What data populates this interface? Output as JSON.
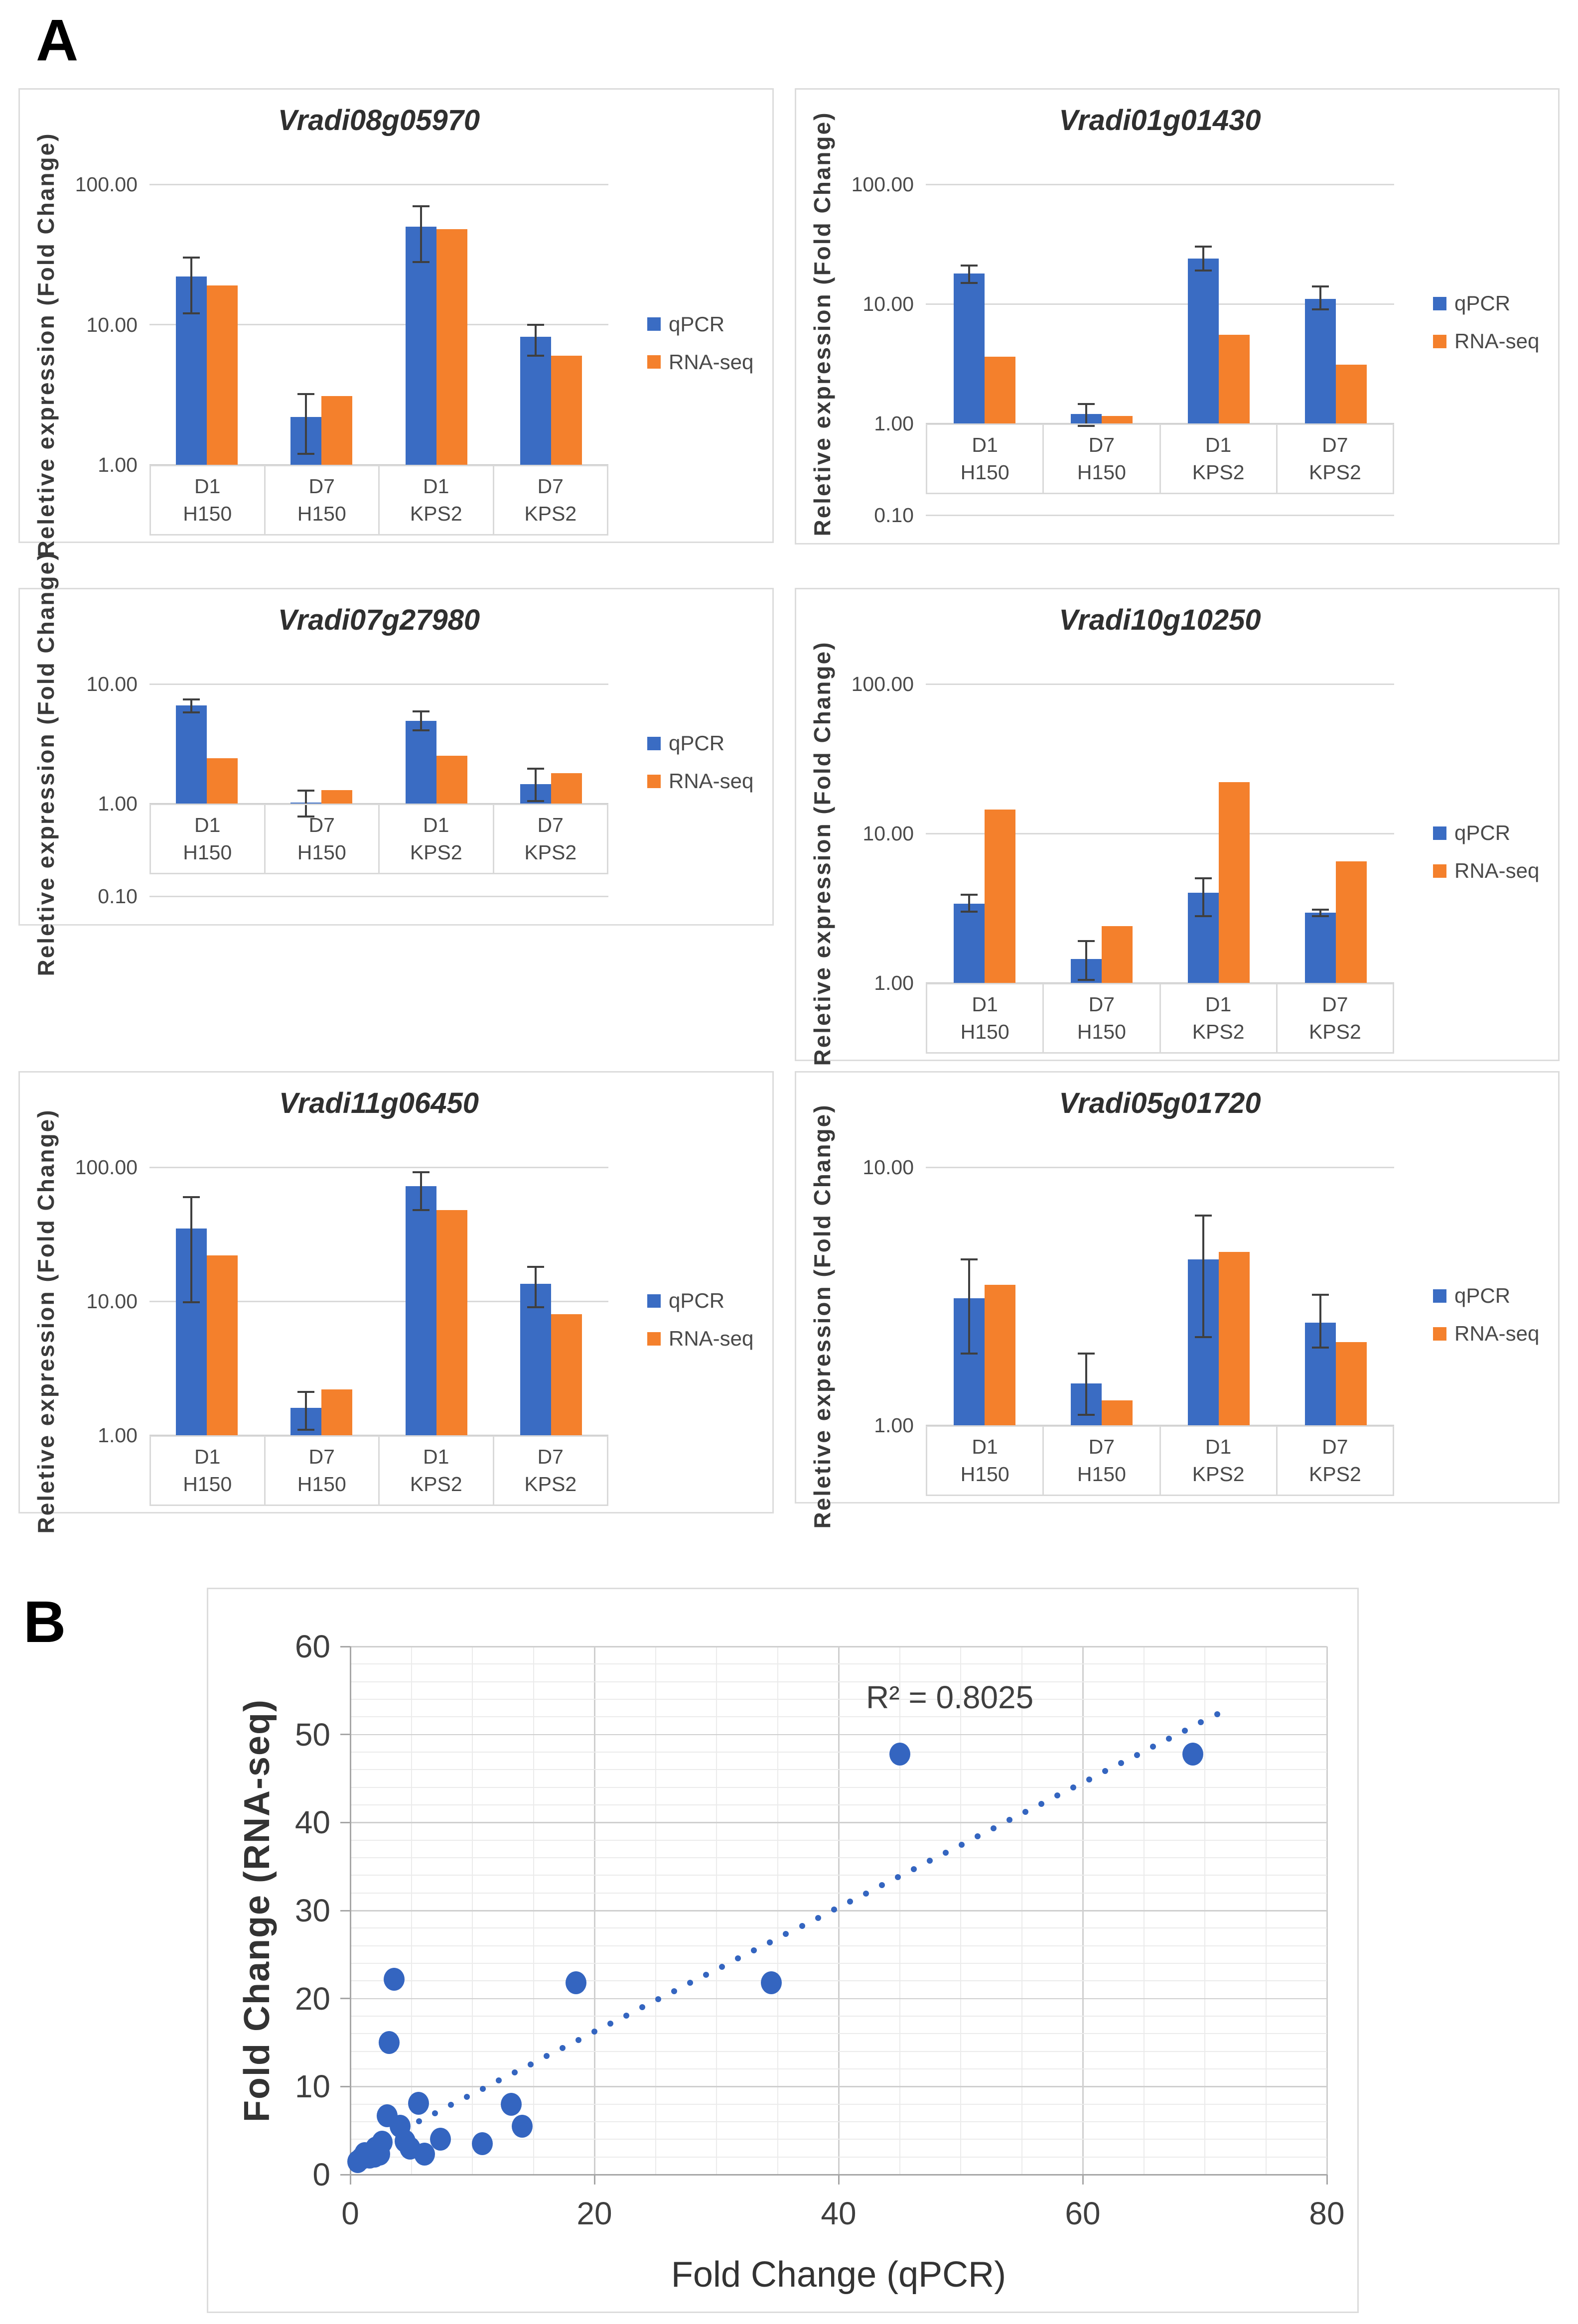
{
  "figure": {
    "panel_a_label": "A",
    "panel_b_label": "B"
  },
  "colors": {
    "qpcr_blue": "#3a6cc3",
    "rnaseq_orange": "#f4802c",
    "scatter_blue": "#3465c0",
    "grid_light": "#d9d9d9",
    "grid_baseline": "#c3c3c3",
    "grid_minor": "#ebebeb",
    "grid_major": "#cfcfcf",
    "axis_gray": "#a6a6a6",
    "error_bar": "#3f3f3f"
  },
  "chart_data": [
    {
      "type": "bar",
      "title": "Vradi08g05970",
      "ylabel": "Reletive expression (Fold Change)",
      "y_scale": "log",
      "ymax": 100,
      "show_sub_decade": false,
      "ytick_format_decimals": 2,
      "categories": [
        {
          "day": "D1",
          "strain": "H150"
        },
        {
          "day": "D7",
          "strain": "H150"
        },
        {
          "day": "D1",
          "strain": "KPS2"
        },
        {
          "day": "D7",
          "strain": "KPS2"
        }
      ],
      "series": [
        {
          "name": "qPCR",
          "values": [
            22,
            2.2,
            50,
            8.2
          ],
          "err_lo": [
            12,
            1.2,
            28,
            6
          ],
          "err_hi": [
            30,
            3.2,
            70,
            10
          ]
        },
        {
          "name": "RNA-seq",
          "values": [
            19,
            3.1,
            48,
            6
          ]
        }
      ]
    },
    {
      "type": "bar",
      "title": "Vradi01g01430",
      "ylabel": "Reletive expression (Fold Change)",
      "y_scale": "log",
      "ymax": 100,
      "show_sub_decade": true,
      "sub_tick_label": "0.10",
      "ytick_format_decimals": 2,
      "categories": [
        {
          "day": "D1",
          "strain": "H150"
        },
        {
          "day": "D7",
          "strain": "H150"
        },
        {
          "day": "D1",
          "strain": "KPS2"
        },
        {
          "day": "D7",
          "strain": "KPS2"
        }
      ],
      "series": [
        {
          "name": "qPCR",
          "values": [
            18,
            1.2,
            24,
            11
          ],
          "err_lo": [
            15,
            0.95,
            19,
            9
          ],
          "err_hi": [
            21,
            1.45,
            30,
            14
          ]
        },
        {
          "name": "RNA-seq",
          "values": [
            3.6,
            1.15,
            5.5,
            3.1
          ]
        }
      ]
    },
    {
      "type": "bar",
      "title": "Vradi07g27980",
      "ylabel": "Reletive expression (Fold Change)",
      "y_scale": "log",
      "ymax": 10,
      "show_sub_decade": true,
      "sub_tick_label": "0.10",
      "ytick_format_decimals": 2,
      "categories": [
        {
          "day": "D1",
          "strain": "H150"
        },
        {
          "day": "D7",
          "strain": "H150"
        },
        {
          "day": "D1",
          "strain": "KPS2"
        },
        {
          "day": "D7",
          "strain": "KPS2"
        }
      ],
      "series": [
        {
          "name": "qPCR",
          "values": [
            6.6,
            1.02,
            4.9,
            1.45
          ],
          "err_lo": [
            5.8,
            0.78,
            4.1,
            1.05
          ],
          "err_hi": [
            7.4,
            1.28,
            5.9,
            1.95
          ]
        },
        {
          "name": "RNA-seq",
          "values": [
            2.4,
            1.3,
            2.5,
            1.8
          ]
        }
      ]
    },
    {
      "type": "bar",
      "title": "Vradi10g10250",
      "ylabel": "Reletive expression (Fold Change)",
      "y_scale": "log",
      "ymax": 100,
      "show_sub_decade": false,
      "ytick_format_decimals": 2,
      "categories": [
        {
          "day": "D1",
          "strain": "H150"
        },
        {
          "day": "D7",
          "strain": "H150"
        },
        {
          "day": "D1",
          "strain": "KPS2"
        },
        {
          "day": "D7",
          "strain": "KPS2"
        }
      ],
      "series": [
        {
          "name": "qPCR",
          "values": [
            3.4,
            1.45,
            4.0,
            2.95
          ],
          "err_lo": [
            3.0,
            1.05,
            2.8,
            2.8
          ],
          "err_hi": [
            3.9,
            1.9,
            5.0,
            3.1
          ]
        },
        {
          "name": "RNA-seq",
          "values": [
            14.5,
            2.4,
            22,
            6.5
          ]
        }
      ]
    },
    {
      "type": "bar",
      "title": "Vradi11g06450",
      "ylabel": "Reletive expression (Fold Change)",
      "y_scale": "log",
      "ymax": 100,
      "show_sub_decade": false,
      "ytick_format_decimals": 2,
      "categories": [
        {
          "day": "D1",
          "strain": "H150"
        },
        {
          "day": "D7",
          "strain": "H150"
        },
        {
          "day": "D1",
          "strain": "KPS2"
        },
        {
          "day": "D7",
          "strain": "KPS2"
        }
      ],
      "series": [
        {
          "name": "qPCR",
          "values": [
            35,
            1.6,
            72,
            13.5
          ],
          "err_lo": [
            9.8,
            1.1,
            48,
            9
          ],
          "err_hi": [
            60,
            2.1,
            92,
            18
          ]
        },
        {
          "name": "RNA-seq",
          "values": [
            22,
            2.2,
            48,
            8
          ]
        }
      ]
    },
    {
      "type": "bar",
      "title": "Vradi05g01720",
      "ylabel": "Reletive expression (Fold Change)",
      "y_scale": "log",
      "ymax": 10,
      "show_sub_decade": false,
      "ytick_format_decimals": 2,
      "categories": [
        {
          "day": "D1",
          "strain": "H150"
        },
        {
          "day": "D7",
          "strain": "H150"
        },
        {
          "day": "D1",
          "strain": "KPS2"
        },
        {
          "day": "D7",
          "strain": "KPS2"
        }
      ],
      "series": [
        {
          "name": "qPCR",
          "values": [
            3.1,
            1.45,
            4.4,
            2.5
          ],
          "err_lo": [
            1.9,
            1.1,
            2.2,
            2.0
          ],
          "err_hi": [
            4.4,
            1.9,
            6.5,
            3.2
          ]
        },
        {
          "name": "RNA-seq",
          "values": [
            3.5,
            1.25,
            4.7,
            2.1
          ]
        }
      ]
    },
    {
      "type": "scatter",
      "xlabel": "Fold Change (qPCR)",
      "ylabel": "Fold Change (RNA-seq)",
      "xlim": [
        0,
        80
      ],
      "ylim": [
        0,
        60
      ],
      "xticks": [
        0,
        20,
        40,
        60,
        80
      ],
      "yticks": [
        0,
        10,
        20,
        30,
        40,
        50,
        60
      ],
      "x_minor_step": 5,
      "y_minor_step": 2,
      "grid": true,
      "r2_label": "R² = 0.8025",
      "r2_pos": {
        "x": 50,
        "y": 54.5
      },
      "points": [
        {
          "x": 0.6,
          "y": 1.5
        },
        {
          "x": 0.9,
          "y": 1.8
        },
        {
          "x": 1.2,
          "y": 2.4
        },
        {
          "x": 1.6,
          "y": 2.0
        },
        {
          "x": 2.0,
          "y": 2.1
        },
        {
          "x": 2.1,
          "y": 3.0
        },
        {
          "x": 2.4,
          "y": 2.3
        },
        {
          "x": 2.6,
          "y": 3.7
        },
        {
          "x": 3.0,
          "y": 6.7
        },
        {
          "x": 3.2,
          "y": 15.0
        },
        {
          "x": 3.6,
          "y": 22.2
        },
        {
          "x": 4.1,
          "y": 5.5
        },
        {
          "x": 4.5,
          "y": 3.8
        },
        {
          "x": 4.9,
          "y": 3.0
        },
        {
          "x": 5.6,
          "y": 8.1
        },
        {
          "x": 6.1,
          "y": 2.3
        },
        {
          "x": 7.4,
          "y": 4.0
        },
        {
          "x": 10.8,
          "y": 3.5
        },
        {
          "x": 13.2,
          "y": 8.0
        },
        {
          "x": 14.1,
          "y": 5.5
        },
        {
          "x": 18.5,
          "y": 21.8
        },
        {
          "x": 34.5,
          "y": 21.8
        },
        {
          "x": 45.0,
          "y": 47.8
        },
        {
          "x": 69.0,
          "y": 47.8
        }
      ],
      "trendline": {
        "style": "dotted",
        "x_start": 3,
        "y_start": 4.2,
        "x_end": 71,
        "y_end": 52.3
      }
    }
  ]
}
